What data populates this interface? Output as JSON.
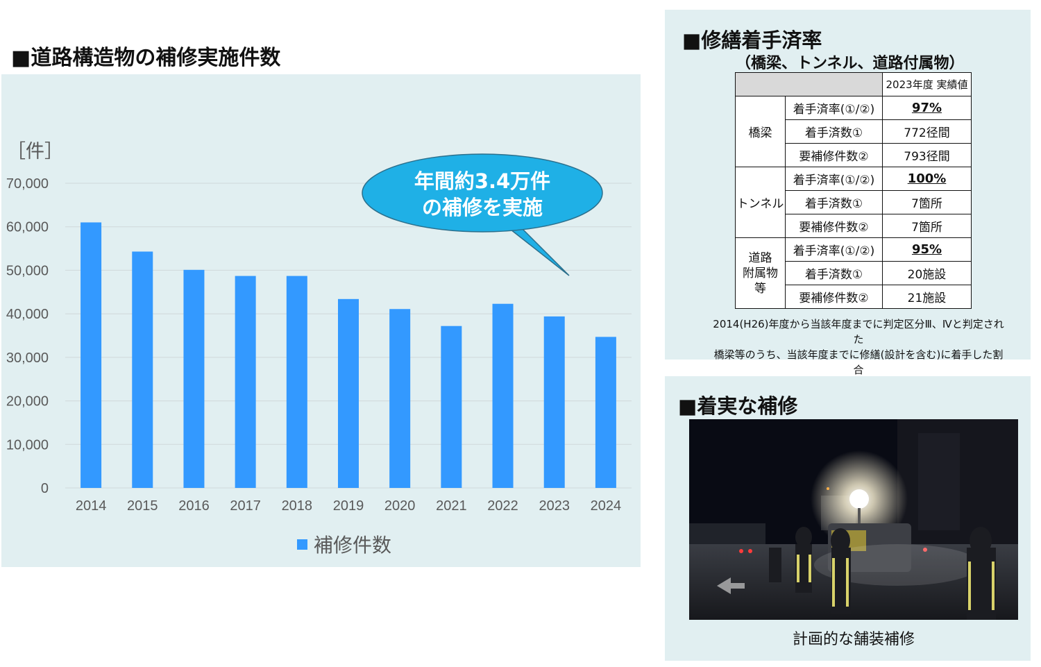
{
  "chart_title": "■道路構造物の補修実施件数",
  "chart_data": {
    "type": "bar",
    "unit_label": "［件］",
    "categories": [
      "2014",
      "2015",
      "2016",
      "2017",
      "2018",
      "2019",
      "2020",
      "2021",
      "2022",
      "2023",
      "2024"
    ],
    "series": [
      {
        "name": "補修件数",
        "values": [
          61000,
          54300,
          50100,
          48700,
          48700,
          43400,
          41100,
          37200,
          42300,
          39400,
          34700
        ]
      }
    ],
    "ylim": [
      0,
      70000
    ],
    "yticks": [
      0,
      10000,
      20000,
      30000,
      40000,
      50000,
      60000,
      70000
    ],
    "ytick_labels": [
      "0",
      "10,000",
      "20,000",
      "30,000",
      "40,000",
      "50,000",
      "60,000",
      "70,000"
    ],
    "grid": true,
    "legend": "bottom",
    "bar_color": "#3399ff",
    "callout": {
      "line1": "年間約3.4万件",
      "line2": "の補修を実施",
      "color": "#1fb0e6"
    }
  },
  "rate_section": {
    "title": "■修繕着手済率",
    "subtitle": "（橋梁、トンネル、道路付属物）",
    "column_header": "2023年度 実績値",
    "groups": [
      {
        "name": "橋梁",
        "rows": [
          {
            "label": "着手済率(①/②)",
            "value": "97%"
          },
          {
            "label": "着手済数①",
            "value": "772径間"
          },
          {
            "label": "要補修件数②",
            "value": "793径間"
          }
        ]
      },
      {
        "name": "トンネル",
        "rows": [
          {
            "label": "着手済率(①/②)",
            "value": "100%"
          },
          {
            "label": "着手済数①",
            "value": "7箇所"
          },
          {
            "label": "要補修件数②",
            "value": "7箇所"
          }
        ]
      },
      {
        "name_lines": [
          "道路",
          "附属物",
          "等"
        ],
        "rows": [
          {
            "label": "着手済率(①/②)",
            "value": "95%"
          },
          {
            "label": "着手済数①",
            "value": "20施設"
          },
          {
            "label": "要補修件数②",
            "value": "21施設"
          }
        ]
      }
    ],
    "note_line1": "2014(H26)年度から当該年度までに判定区分Ⅲ、Ⅳと判定された",
    "note_line2": "橋梁等のうち、当該年度までに修繕(設計を含む)に着手した割合"
  },
  "repair_section": {
    "title": "■着実な補修",
    "caption": "計画的な舗装補修"
  }
}
